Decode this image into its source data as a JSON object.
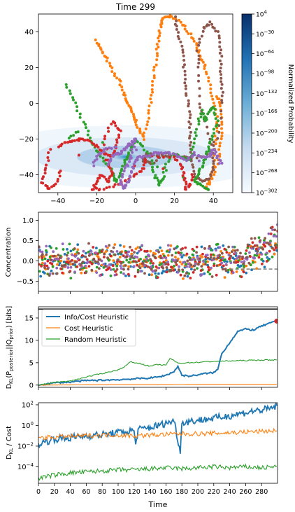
{
  "chart_data": [
    {
      "type": "scatter",
      "title": "Time 299",
      "xlabel": "",
      "ylabel": "",
      "xlim": [
        -50,
        50
      ],
      "ylim": [
        -50,
        50
      ],
      "xticks": [
        "−40",
        "−20",
        "0",
        "20",
        "40"
      ],
      "yticks": [
        "40",
        "20",
        "0",
        "−20",
        "−40"
      ],
      "colorbar": {
        "label": "Normalized Probability",
        "ticks": [
          "10^4",
          "10^-30",
          "10^-64",
          "10^-98",
          "10^-132",
          "10^-166",
          "10^-200",
          "10^-234",
          "10^-268",
          "10^-302"
        ],
        "tick_base": "10",
        "tick_exponents": [
          "4",
          "−30",
          "−64",
          "−98",
          "−132",
          "−166",
          "−200",
          "−234",
          "−268",
          "−302"
        ]
      },
      "density_peak": [
        -5,
        -30
      ],
      "series": [
        {
          "color": "#ff7f0e",
          "points": [
            [
              -20,
              35
            ],
            [
              -18,
              30
            ],
            [
              -15,
              25
            ],
            [
              -12,
              18
            ],
            [
              -8,
              12
            ],
            [
              -6,
              5
            ],
            [
              -4,
              0
            ],
            [
              -2,
              -5
            ],
            [
              0,
              -10
            ],
            [
              2,
              -15
            ],
            [
              4,
              -20
            ],
            [
              6,
              -10
            ],
            [
              8,
              0
            ],
            [
              9,
              10
            ],
            [
              10,
              20
            ],
            [
              11,
              30
            ],
            [
              12,
              38
            ],
            [
              13,
              45
            ],
            [
              14,
              48
            ],
            [
              18,
              49
            ],
            [
              22,
              46
            ],
            [
              26,
              42
            ],
            [
              30,
              36
            ],
            [
              32,
              30
            ],
            [
              34,
              25
            ],
            [
              36,
              20
            ],
            [
              38,
              10
            ],
            [
              40,
              0
            ],
            [
              42,
              -10
            ],
            [
              41,
              -20
            ],
            [
              40,
              -35
            ],
            [
              38,
              -44
            ],
            [
              36,
              -48
            ],
            [
              40,
              -40
            ],
            [
              43,
              -30
            ],
            [
              44,
              -20
            ],
            [
              44,
              -10
            ],
            [
              43,
              0
            ],
            [
              42,
              5
            ]
          ]
        },
        {
          "color": "#8c564b",
          "points": [
            [
              20,
              48
            ],
            [
              22,
              40
            ],
            [
              24,
              30
            ],
            [
              25,
              20
            ],
            [
              26,
              10
            ],
            [
              27,
              0
            ],
            [
              28,
              -10
            ],
            [
              28,
              -20
            ],
            [
              28,
              -30
            ],
            [
              30,
              -40
            ],
            [
              34,
              -44
            ],
            [
              38,
              -42
            ],
            [
              40,
              -36
            ],
            [
              40,
              -26
            ],
            [
              36,
              -10
            ],
            [
              33,
              0
            ],
            [
              32,
              20
            ],
            [
              32,
              32
            ],
            [
              35,
              42
            ],
            [
              38,
              45
            ],
            [
              42,
              40
            ],
            [
              44,
              30
            ],
            [
              44,
              20
            ],
            [
              44,
              10
            ],
            [
              45,
              0
            ],
            [
              42,
              -20
            ],
            [
              36,
              -30
            ],
            [
              28,
              -30
            ],
            [
              20,
              -30
            ],
            [
              12,
              -29
            ],
            [
              6,
              -28
            ],
            [
              4,
              -32
            ],
            [
              8,
              -34
            ],
            [
              16,
              -28
            ],
            [
              24,
              -30
            ],
            [
              30,
              -32
            ]
          ]
        },
        {
          "color": "#2ca02c",
          "points": [
            [
              -36,
              10
            ],
            [
              -32,
              2
            ],
            [
              -28,
              -8
            ],
            [
              -24,
              -18
            ],
            [
              -20,
              -26
            ],
            [
              -16,
              -32
            ],
            [
              -12,
              -38
            ],
            [
              -10,
              -44
            ],
            [
              -8,
              -40
            ],
            [
              -6,
              -34
            ],
            [
              -4,
              -30
            ],
            [
              -2,
              -24
            ],
            [
              0,
              -20
            ],
            [
              4,
              -24
            ],
            [
              8,
              -32
            ],
            [
              10,
              -40
            ],
            [
              12,
              -46
            ],
            [
              14,
              -42
            ],
            [
              16,
              -34
            ],
            [
              20,
              -28
            ],
            [
              24,
              -30
            ],
            [
              28,
              -32
            ],
            [
              30,
              -22
            ],
            [
              32,
              -12
            ],
            [
              34,
              -4
            ],
            [
              36,
              -10
            ],
            [
              38,
              -4
            ],
            [
              40,
              -2
            ],
            [
              42,
              -10
            ],
            [
              40,
              -18
            ],
            [
              38,
              -24
            ],
            [
              36,
              -30
            ],
            [
              34,
              -36
            ],
            [
              32,
              -40
            ],
            [
              30,
              -44
            ],
            [
              34,
              -46
            ],
            [
              38,
              -48
            ],
            [
              -30,
              -16
            ],
            [
              -36,
              -20
            ]
          ]
        },
        {
          "color": "#d62728",
          "points": [
            [
              -40,
              -24
            ],
            [
              -36,
              -22
            ],
            [
              -32,
              -21
            ],
            [
              -28,
              -20
            ],
            [
              -24,
              -21
            ],
            [
              -20,
              -24
            ],
            [
              -16,
              -28
            ],
            [
              -12,
              -30
            ],
            [
              -10,
              -24
            ],
            [
              -8,
              -16
            ],
            [
              -12,
              -10
            ],
            [
              -16,
              -20
            ],
            [
              -14,
              -34
            ],
            [
              -12,
              -40
            ],
            [
              -14,
              -44
            ],
            [
              -18,
              -40
            ],
            [
              -20,
              -44
            ],
            [
              -22,
              -48
            ],
            [
              -18,
              -48
            ],
            [
              -10,
              -46
            ],
            [
              -6,
              -44
            ],
            [
              0,
              -40
            ],
            [
              4,
              -36
            ],
            [
              6,
              -30
            ],
            [
              20,
              -30
            ],
            [
              24,
              -36
            ],
            [
              25,
              -42
            ],
            [
              26,
              -48
            ],
            [
              28,
              -46
            ],
            [
              29,
              -40
            ],
            [
              -44,
              -26
            ],
            [
              -46,
              -36
            ],
            [
              -48,
              -44
            ],
            [
              -44,
              -48
            ],
            [
              -40,
              -44
            ],
            [
              -38,
              -36
            ]
          ]
        },
        {
          "color": "#9467bd",
          "points": [
            [
              -14,
              -34
            ],
            [
              -12,
              -30
            ],
            [
              -10,
              -28
            ],
            [
              -8,
              -28
            ],
            [
              -6,
              -26
            ],
            [
              -4,
              -24
            ],
            [
              -2,
              -22
            ],
            [
              0,
              -20
            ],
            [
              -2,
              -28
            ],
            [
              -4,
              -34
            ],
            [
              -6,
              -38
            ],
            [
              -8,
              -44
            ],
            [
              -6,
              -48
            ],
            [
              -4,
              -44
            ],
            [
              -2,
              -38
            ],
            [
              0,
              -32
            ],
            [
              2,
              -30
            ],
            [
              6,
              -30
            ],
            [
              10,
              -28
            ],
            [
              14,
              -28
            ],
            [
              18,
              -28
            ],
            [
              22,
              -30
            ],
            [
              26,
              -32
            ],
            [
              30,
              -28
            ],
            [
              34,
              -30
            ],
            [
              38,
              -30
            ],
            [
              40,
              -26
            ],
            [
              42,
              -30
            ],
            [
              44,
              -34
            ],
            [
              -10,
              -24
            ],
            [
              -16,
              -26
            ],
            [
              -20,
              -30
            ],
            [
              -22,
              -36
            ]
          ]
        }
      ]
    },
    {
      "type": "scatter",
      "ylabel": "Concentration",
      "xlim": [
        0,
        300
      ],
      "ylim": [
        -0.75,
        1.2
      ],
      "yticks": [
        1.0,
        0.5,
        0.0,
        -0.5
      ],
      "ytick_labels": [
        "1.0",
        "0.5",
        "0.0",
        "−0.5"
      ],
      "colors": [
        "#1f77b4",
        "#ff7f0e",
        "#2ca02c",
        "#d62728",
        "#9467bd",
        "#8c564b"
      ],
      "baseline": -0.2,
      "dashed_line": [
        [
          240,
          -0.2
        ],
        [
          300,
          -0.2
        ]
      ]
    },
    {
      "type": "line",
      "ylabel": "DKL(Pposterior||Qprior) [bits]",
      "ylabel_parts": {
        "d": "D",
        "d_sub": "KL",
        "open": "(",
        "p": "P",
        "p_sub": "posterior",
        "sep": "||",
        "q": "Q",
        "q_sub": "prior",
        "close": ")",
        "unit": " [bits]"
      },
      "xlim": [
        0,
        300
      ],
      "ylim": [
        -0.5,
        17.5
      ],
      "yticks": [
        0,
        5,
        10,
        15
      ],
      "ytick_labels": [
        "0",
        "5",
        "10",
        "15"
      ],
      "hline": 17,
      "end_marker": [
        299,
        14.3
      ],
      "series": [
        {
          "name": "Info/Cost Heuristic",
          "color": "#1f77b4",
          "x": [
            0,
            20,
            40,
            60,
            80,
            100,
            120,
            140,
            150,
            160,
            170,
            175,
            180,
            190,
            200,
            210,
            220,
            225,
            230,
            240,
            250,
            260,
            270,
            280,
            290,
            299
          ],
          "y": [
            0,
            0.5,
            0.7,
            1.0,
            1.1,
            1.2,
            1.4,
            1.6,
            1.8,
            2.2,
            3.0,
            4.2,
            2.2,
            2.0,
            2.3,
            2.6,
            2.8,
            3.5,
            7.0,
            9.5,
            12.0,
            12.5,
            12.3,
            13.2,
            13.8,
            14.3
          ]
        },
        {
          "name": "Cost Heuristic",
          "color": "#ff7f0e",
          "x": [
            0,
            50,
            100,
            150,
            200,
            250,
            299
          ],
          "y": [
            0,
            0.05,
            0.1,
            0.1,
            0.15,
            0.15,
            0.15
          ]
        },
        {
          "name": "Random Heuristic",
          "color": "#2ca02c",
          "x": [
            0,
            20,
            40,
            60,
            80,
            100,
            110,
            115,
            130,
            140,
            150,
            160,
            165,
            175,
            200,
            220,
            240,
            260,
            280,
            299
          ],
          "y": [
            0,
            0.6,
            0.9,
            1.8,
            2.6,
            3.4,
            4.3,
            5.2,
            4.7,
            4.2,
            4.6,
            4.4,
            6.0,
            4.9,
            5.1,
            5.3,
            5.4,
            5.5,
            5.6,
            5.6
          ]
        }
      ],
      "legend": "top-left"
    },
    {
      "type": "line",
      "ylabel": "DKL / Cost",
      "ylabel_parts": {
        "d": "D",
        "d_sub": "KL",
        "rest": " / Cost"
      },
      "xlabel": "Time",
      "xlim": [
        0,
        300
      ],
      "ylim_log": [
        -5.6,
        2.2
      ],
      "log_scale": true,
      "xticks": [
        "0",
        "20",
        "40",
        "60",
        "80",
        "100",
        "120",
        "140",
        "160",
        "180",
        "200",
        "220",
        "240",
        "260",
        "280"
      ],
      "ytick_exponents": [
        "2",
        "0",
        "−2",
        "−4"
      ],
      "ytick_base": "10",
      "series": [
        {
          "color": "#1f77b4",
          "x": [
            0,
            20,
            40,
            60,
            80,
            100,
            110,
            120,
            122,
            125,
            140,
            160,
            170,
            178,
            180,
            190,
            210,
            230,
            250,
            270,
            290,
            299
          ],
          "log_y": [
            -1.8,
            -1.3,
            -1.2,
            -1.0,
            -0.9,
            -0.7,
            -0.6,
            -0.5,
            -1.9,
            -0.4,
            -0.2,
            0.2,
            0.5,
            -2.5,
            0.3,
            0.4,
            0.6,
            0.8,
            1.1,
            1.4,
            1.6,
            1.9
          ]
        },
        {
          "color": "#ff7f0e",
          "x": [
            0,
            30,
            60,
            90,
            120,
            150,
            180,
            210,
            240,
            270,
            299
          ],
          "log_y": [
            -1.2,
            -1.1,
            -1.0,
            -0.9,
            -1.0,
            -0.9,
            -0.8,
            -0.8,
            -0.7,
            -0.6,
            -0.5
          ]
        },
        {
          "color": "#2ca02c",
          "x": [
            0,
            20,
            40,
            60,
            80,
            100,
            120,
            140,
            160,
            180,
            200,
            220,
            240,
            260,
            280,
            299
          ],
          "log_y": [
            -5.1,
            -4.8,
            -4.6,
            -4.5,
            -4.4,
            -4.3,
            -4.3,
            -4.2,
            -4.1,
            -4.2,
            -4.1,
            -4.0,
            -4.1,
            -4.0,
            -4.1,
            -4.0
          ]
        }
      ]
    }
  ]
}
